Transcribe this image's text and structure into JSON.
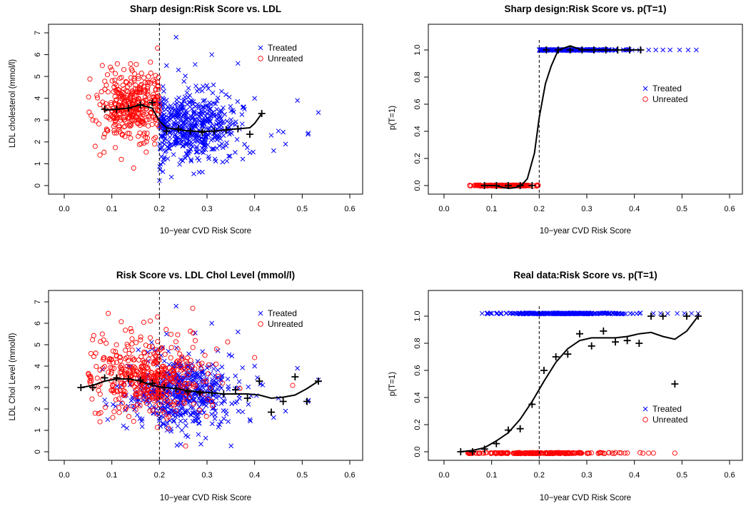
{
  "chart_data": [
    {
      "type": "scatter",
      "title": "Sharp design:Risk Score vs. LDL",
      "xlabel": "10−year CVD Risk Score",
      "ylabel": "LDL cholesterol (mmol/l)",
      "xlim": [
        0.0,
        0.6
      ],
      "ylim": [
        0,
        7
      ],
      "xticks": [
        "0.0",
        "0.1",
        "0.2",
        "0.3",
        "0.4",
        "0.5",
        "0.6"
      ],
      "yticks": [
        "0",
        "1",
        "2",
        "3",
        "4",
        "5",
        "6",
        "7"
      ],
      "ytick_rotated": true,
      "cutoff": 0.2,
      "legend": {
        "position": "top-right",
        "entries": [
          {
            "label": "Treated",
            "marker": "x",
            "color": "#0000ff"
          },
          {
            "label": "Unreated",
            "marker": "o",
            "color": "#ff0000"
          }
        ]
      },
      "series": [
        {
          "name": "Treated",
          "marker": "x",
          "color": "#0000ff",
          "cloud": {
            "x_range": [
              0.2,
              0.42
            ],
            "x_mean": 0.27,
            "x_sd": 0.05,
            "y_mean": 2.7,
            "y_sd": 0.8,
            "n": 520
          },
          "points": [
            [
              0.235,
              6.8
            ],
            [
              0.31,
              6.0
            ],
            [
              0.365,
              5.6
            ],
            [
              0.275,
              5.55
            ],
            [
              0.215,
              5.5
            ],
            [
              0.24,
              5.3
            ],
            [
              0.49,
              3.9
            ],
            [
              0.513,
              2.4
            ],
            [
              0.512,
              2.35
            ],
            [
              0.534,
              3.35
            ],
            [
              0.45,
              2.5
            ],
            [
              0.46,
              2.45
            ],
            [
              0.435,
              2.3
            ],
            [
              0.44,
              1.6
            ],
            [
              0.465,
              1.9
            ],
            [
              0.4,
              4.0
            ],
            [
              0.39,
              1.5
            ]
          ]
        },
        {
          "name": "Unreated",
          "marker": "o",
          "color": "#ff0000",
          "cloud": {
            "x_range": [
              0.05,
              0.2
            ],
            "x_mean": 0.14,
            "x_sd": 0.035,
            "y_mean": 3.7,
            "y_sd": 0.85,
            "n": 360
          },
          "points": [
            [
              0.196,
              6.3
            ],
            [
              0.08,
              5.5
            ],
            [
              0.1,
              5.3
            ],
            [
              0.06,
              3.0
            ],
            [
              0.065,
              1.8
            ],
            [
              0.075,
              1.4
            ],
            [
              0.19,
              1.9
            ],
            [
              0.12,
              1.2
            ]
          ]
        },
        {
          "name": "",
          "type": "line",
          "color": "#000000",
          "x": [
            0.085,
            0.11,
            0.135,
            0.16,
            0.185,
            0.2,
            0.215,
            0.24,
            0.265,
            0.29,
            0.315,
            0.34,
            0.365,
            0.39,
            0.4,
            0.415
          ],
          "y": [
            3.45,
            3.5,
            3.55,
            3.7,
            3.55,
            2.95,
            2.65,
            2.55,
            2.5,
            2.48,
            2.5,
            2.55,
            2.6,
            2.65,
            2.85,
            3.3
          ]
        },
        {
          "name": "",
          "type": "plus",
          "color": "#000000",
          "x": [
            0.085,
            0.11,
            0.135,
            0.16,
            0.185,
            0.215,
            0.24,
            0.265,
            0.29,
            0.315,
            0.34,
            0.365,
            0.39,
            0.415
          ],
          "y": [
            3.5,
            3.5,
            3.55,
            3.7,
            3.8,
            2.5,
            2.6,
            2.5,
            2.45,
            2.5,
            2.55,
            2.6,
            2.35,
            3.3
          ]
        }
      ]
    },
    {
      "type": "scatter",
      "title": "Sharp design:Risk Score vs. p(T=1)",
      "xlabel": "10−year CVD Risk Score",
      "ylabel": "p(T=1)",
      "xlim": [
        0.0,
        0.6
      ],
      "ylim": [
        0,
        1
      ],
      "xticks": [
        "0.0",
        "0.1",
        "0.2",
        "0.3",
        "0.4",
        "0.5",
        "0.6"
      ],
      "yticks": [
        "0.0",
        "0.2",
        "0.4",
        "0.6",
        "0.8",
        "1.0"
      ],
      "ytick_rotated": true,
      "cutoff": 0.2,
      "legend": {
        "position": "middle-right",
        "entries": [
          {
            "label": "Treated",
            "marker": "x",
            "color": "#0000ff"
          },
          {
            "label": "Unreated",
            "marker": "o",
            "color": "#ff0000"
          }
        ]
      },
      "series": [
        {
          "name": "Treated",
          "marker": "x",
          "color": "#0000ff",
          "cloud": {
            "x_range": [
              0.2,
              0.42
            ],
            "x_mean": 0.27,
            "x_sd": 0.05,
            "y_const": 1.0,
            "y_jitter": 0.004,
            "n": 260
          },
          "points": [
            [
              0.43,
              1.0
            ],
            [
              0.445,
              1.0
            ],
            [
              0.46,
              1.0
            ],
            [
              0.475,
              1.0
            ],
            [
              0.495,
              1.0
            ],
            [
              0.513,
              1.0
            ],
            [
              0.53,
              1.0
            ]
          ]
        },
        {
          "name": "Unreated",
          "marker": "o",
          "color": "#ff0000",
          "cloud": {
            "x_range": [
              0.05,
              0.2
            ],
            "x_mean": 0.13,
            "x_sd": 0.04,
            "y_const": 0.0,
            "y_jitter": 0.004,
            "n": 160
          },
          "points": []
        },
        {
          "name": "",
          "type": "line",
          "color": "#000000",
          "x": [
            0.085,
            0.11,
            0.125,
            0.138,
            0.15,
            0.162,
            0.175,
            0.19,
            0.2,
            0.213,
            0.225,
            0.24,
            0.265,
            0.29,
            0.315,
            0.34,
            0.365,
            0.39,
            0.413
          ],
          "y": [
            0.0,
            0.0,
            -0.015,
            -0.02,
            -0.015,
            0.0,
            0.05,
            0.24,
            0.5,
            0.75,
            0.88,
            1.0,
            1.03,
            1.0,
            1.0,
            1.0,
            1.0,
            1.0,
            1.0
          ]
        },
        {
          "name": "",
          "type": "plus",
          "color": "#000000",
          "x": [
            0.085,
            0.11,
            0.135,
            0.16,
            0.185,
            0.215,
            0.24,
            0.265,
            0.29,
            0.315,
            0.34,
            0.365,
            0.39,
            0.413
          ],
          "y": [
            0,
            0,
            0,
            0,
            0,
            1,
            1,
            1,
            1,
            1,
            1,
            1,
            1,
            1
          ]
        }
      ]
    },
    {
      "type": "scatter",
      "title": "Risk Score vs. LDL Chol Level (mmol/l)",
      "xlabel": "10−year CVD Risk Score",
      "ylabel": "LDL Chol Level (mmol/l)",
      "xlim": [
        0.0,
        0.6
      ],
      "ylim": [
        0,
        7
      ],
      "xticks": [
        "0.0",
        "0.1",
        "0.2",
        "0.3",
        "0.4",
        "0.5",
        "0.6"
      ],
      "yticks": [
        "0",
        "1",
        "2",
        "3",
        "4",
        "5",
        "6",
        "7"
      ],
      "ytick_rotated": true,
      "cutoff": 0.2,
      "legend": {
        "position": "top-right",
        "entries": [
          {
            "label": "Treated",
            "marker": "x",
            "color": "#0000ff"
          },
          {
            "label": "Unreated",
            "marker": "o",
            "color": "#ff0000"
          }
        ]
      },
      "series": [
        {
          "name": "Treated",
          "marker": "x",
          "color": "#0000ff",
          "cloud": {
            "x_range": [
              0.08,
              0.42
            ],
            "x_mean": 0.25,
            "x_sd": 0.06,
            "y_mean": 2.7,
            "y_sd": 0.85,
            "n": 520
          },
          "points": [
            [
              0.235,
              6.8
            ],
            [
              0.31,
              6.0
            ],
            [
              0.365,
              5.6
            ],
            [
              0.275,
              5.55
            ],
            [
              0.215,
              5.5
            ],
            [
              0.49,
              3.9
            ],
            [
              0.513,
              2.4
            ],
            [
              0.512,
              2.35
            ],
            [
              0.534,
              3.35
            ],
            [
              0.45,
              2.5
            ],
            [
              0.465,
              1.9
            ],
            [
              0.44,
              1.6
            ],
            [
              0.4,
              4.0
            ],
            [
              0.39,
              1.5
            ]
          ]
        },
        {
          "name": "Unreated",
          "marker": "o",
          "color": "#ff0000",
          "cloud": {
            "x_range": [
              0.05,
              0.42
            ],
            "x_mean": 0.17,
            "x_sd": 0.06,
            "y_mean": 3.5,
            "y_sd": 0.95,
            "n": 440
          },
          "points": [
            [
              0.196,
              6.3
            ],
            [
              0.27,
              6.7
            ],
            [
              0.08,
              5.5
            ],
            [
              0.06,
              3.0
            ],
            [
              0.065,
              1.8
            ],
            [
              0.075,
              1.4
            ],
            [
              0.4,
              4.4
            ],
            [
              0.48,
              3.1
            ],
            [
              0.32,
              4.8
            ]
          ]
        },
        {
          "name": "",
          "type": "line",
          "color": "#000000",
          "x": [
            0.035,
            0.06,
            0.085,
            0.11,
            0.135,
            0.16,
            0.185,
            0.21,
            0.235,
            0.26,
            0.285,
            0.31,
            0.335,
            0.36,
            0.385,
            0.41,
            0.435,
            0.46,
            0.485,
            0.51,
            0.534
          ],
          "y": [
            3.0,
            3.1,
            3.3,
            3.4,
            3.4,
            3.3,
            3.1,
            3.0,
            2.95,
            2.85,
            2.8,
            2.75,
            2.7,
            2.7,
            2.7,
            2.65,
            2.5,
            2.55,
            2.65,
            2.95,
            3.3
          ]
        },
        {
          "name": "",
          "type": "plus",
          "color": "#000000",
          "x": [
            0.035,
            0.06,
            0.085,
            0.11,
            0.135,
            0.16,
            0.185,
            0.21,
            0.235,
            0.26,
            0.285,
            0.31,
            0.335,
            0.36,
            0.385,
            0.41,
            0.435,
            0.46,
            0.485,
            0.51,
            0.534
          ],
          "y": [
            3.0,
            3.0,
            3.45,
            3.45,
            3.4,
            3.35,
            3.2,
            3.0,
            2.95,
            2.8,
            2.75,
            2.75,
            2.7,
            2.9,
            2.5,
            3.3,
            1.85,
            2.35,
            3.5,
            2.35,
            3.3
          ]
        }
      ]
    },
    {
      "type": "scatter",
      "title": "Real data:Risk Score vs. p(T=1)",
      "xlabel": "10−year CVD Risk Score",
      "ylabel": "p(T=1)",
      "xlim": [
        0.0,
        0.6
      ],
      "ylim": [
        0,
        1
      ],
      "xticks": [
        "0.0",
        "0.1",
        "0.2",
        "0.3",
        "0.4",
        "0.5",
        "0.6"
      ],
      "yticks": [
        "0.0",
        "0.2",
        "0.4",
        "0.6",
        "0.8",
        "1.0"
      ],
      "ytick_rotated": true,
      "cutoff": 0.2,
      "legend": {
        "position": "bottom-right",
        "entries": [
          {
            "label": "Treated",
            "marker": "x",
            "color": "#0000ff"
          },
          {
            "label": "Unreated",
            "marker": "o",
            "color": "#ff0000"
          }
        ]
      },
      "series": [
        {
          "name": "Treated",
          "marker": "x",
          "color": "#0000ff",
          "cloud": {
            "x_range": [
              0.09,
              0.42
            ],
            "x_mean": 0.25,
            "x_sd": 0.07,
            "y_const": 1.02,
            "y_jitter": 0.004,
            "n": 260
          },
          "points": [
            [
              0.08,
              1.02
            ],
            [
              0.1,
              1.02
            ],
            [
              0.44,
              1.02
            ],
            [
              0.455,
              1.02
            ],
            [
              0.47,
              1.02
            ],
            [
              0.49,
              1.02
            ],
            [
              0.505,
              1.02
            ],
            [
              0.52,
              1.02
            ],
            [
              0.534,
              1.02
            ]
          ]
        },
        {
          "name": "Unreated",
          "marker": "o",
          "color": "#ff0000",
          "cloud": {
            "x_range": [
              0.05,
              0.42
            ],
            "x_mean": 0.2,
            "x_sd": 0.08,
            "y_const": -0.01,
            "y_jitter": 0.004,
            "n": 240
          },
          "points": [
            [
              0.485,
              -0.01
            ],
            [
              0.43,
              -0.01
            ],
            [
              0.44,
              -0.01
            ],
            [
              0.38,
              -0.01
            ]
          ]
        },
        {
          "name": "",
          "type": "line",
          "color": "#000000",
          "x": [
            0.035,
            0.06,
            0.085,
            0.11,
            0.135,
            0.16,
            0.185,
            0.21,
            0.235,
            0.26,
            0.285,
            0.31,
            0.335,
            0.36,
            0.385,
            0.41,
            0.435,
            0.46,
            0.485,
            0.51,
            0.534
          ],
          "y": [
            0.0,
            0.01,
            0.03,
            0.08,
            0.14,
            0.24,
            0.37,
            0.52,
            0.66,
            0.76,
            0.82,
            0.84,
            0.84,
            0.84,
            0.85,
            0.87,
            0.88,
            0.85,
            0.83,
            0.89,
            1.0
          ]
        },
        {
          "name": "",
          "type": "plus",
          "color": "#000000",
          "x": [
            0.035,
            0.06,
            0.085,
            0.11,
            0.135,
            0.16,
            0.185,
            0.21,
            0.235,
            0.26,
            0.285,
            0.31,
            0.335,
            0.36,
            0.385,
            0.41,
            0.435,
            0.46,
            0.485,
            0.51,
            0.534
          ],
          "y": [
            0.0,
            0.0,
            0.02,
            0.06,
            0.16,
            0.17,
            0.35,
            0.6,
            0.7,
            0.72,
            0.87,
            0.78,
            0.89,
            0.81,
            0.82,
            0.8,
            1.0,
            1.0,
            0.5,
            1.0,
            1.0
          ]
        }
      ]
    }
  ]
}
